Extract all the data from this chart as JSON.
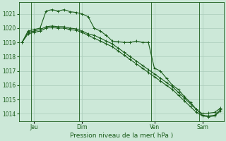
{
  "background_color": "#cce8d8",
  "grid_color": "#aaccbb",
  "line_color": "#1a5c1a",
  "marker_color": "#1a5c1a",
  "xlabel": "Pression niveau de la mer( hPa )",
  "ylim": [
    1013.5,
    1021.8
  ],
  "yticks": [
    1014,
    1015,
    1016,
    1017,
    1018,
    1019,
    1020,
    1021
  ],
  "xtick_labels": [
    "Jeu",
    "Dim",
    "Ven",
    "Sam"
  ],
  "xtick_positions": [
    2,
    10,
    22,
    30
  ],
  "vline_positions": [
    2,
    10,
    22,
    30
  ],
  "total_points": 34,
  "series": [
    [
      1019.0,
      1019.8,
      1019.9,
      1020.0,
      1021.2,
      1021.3,
      1021.2,
      1021.3,
      1021.15,
      1021.1,
      1021.0,
      1020.8,
      1020.0,
      1019.8,
      1019.5,
      1019.1,
      1019.05,
      1019.0,
      1019.0,
      1019.1,
      1019.0,
      1019.0,
      1017.2,
      1017.0,
      1016.5,
      1016.0,
      1015.7,
      1015.2,
      1014.8,
      1014.3,
      1014.0,
      1014.05,
      1014.1,
      1014.4
    ],
    [
      1019.0,
      1019.7,
      1019.8,
      1019.9,
      1020.1,
      1020.15,
      1020.1,
      1020.1,
      1020.0,
      1019.95,
      1019.8,
      1019.6,
      1019.5,
      1019.3,
      1019.1,
      1018.9,
      1018.6,
      1018.3,
      1018.0,
      1017.7,
      1017.4,
      1017.1,
      1016.8,
      1016.5,
      1016.2,
      1015.9,
      1015.5,
      1015.1,
      1014.7,
      1014.3,
      1013.9,
      1013.85,
      1013.9,
      1014.3
    ],
    [
      1019.0,
      1019.6,
      1019.7,
      1019.8,
      1020.0,
      1020.05,
      1020.0,
      1020.0,
      1019.9,
      1019.85,
      1019.7,
      1019.5,
      1019.3,
      1019.1,
      1018.9,
      1018.7,
      1018.4,
      1018.1,
      1017.8,
      1017.5,
      1017.2,
      1016.9,
      1016.6,
      1016.3,
      1016.0,
      1015.7,
      1015.3,
      1014.9,
      1014.5,
      1014.1,
      1013.85,
      1013.8,
      1013.85,
      1014.2
    ]
  ]
}
